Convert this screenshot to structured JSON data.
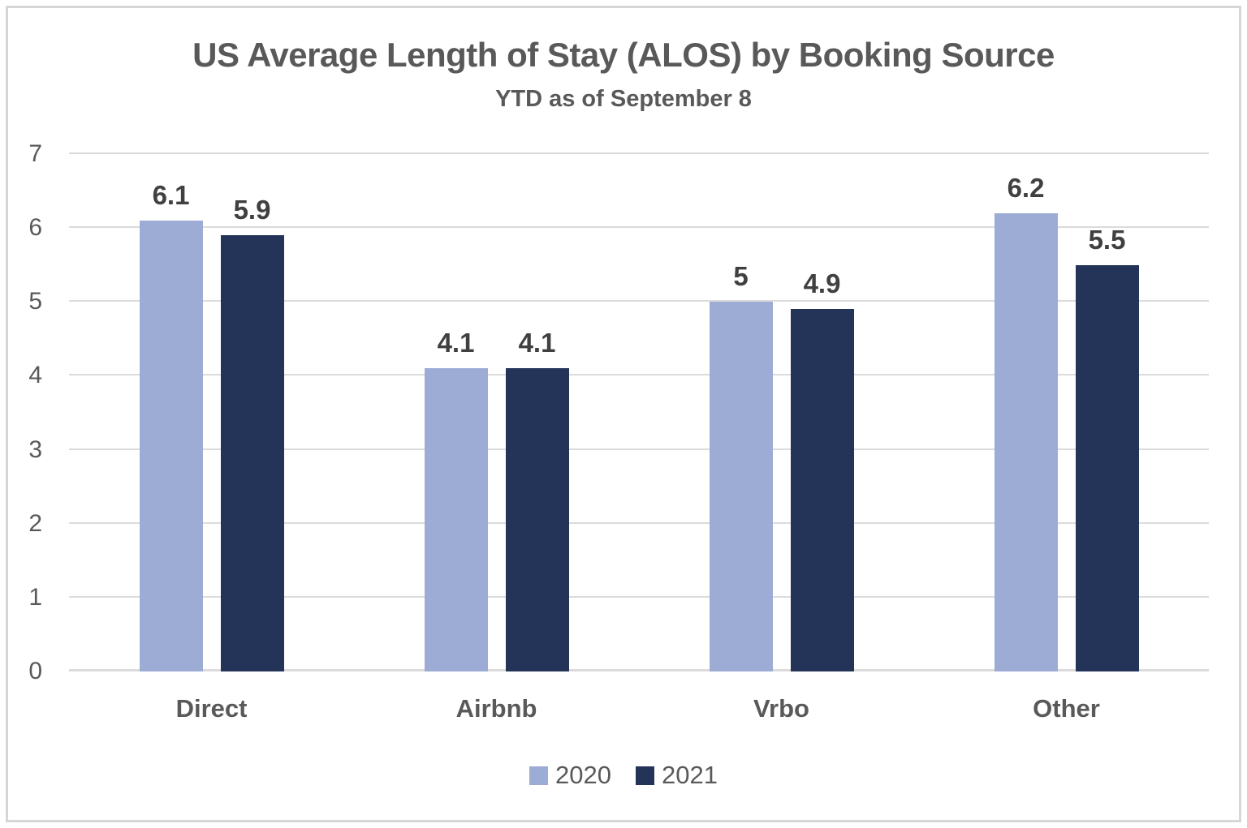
{
  "frame": {
    "border_color": "#d6d6d6",
    "background_color": "#ffffff"
  },
  "chart_data": {
    "type": "bar",
    "title": "US Average Length of Stay (ALOS) by Booking Source",
    "subtitle": "YTD as of September 8",
    "categories": [
      "Direct",
      "Airbnb",
      "Vrbo",
      "Other"
    ],
    "series": [
      {
        "name": "2020",
        "color": "#9cacd5",
        "values": [
          6.1,
          4.1,
          5,
          6.2
        ],
        "labels": [
          "6.1",
          "4.1",
          "5",
          "6.2"
        ]
      },
      {
        "name": "2021",
        "color": "#243459",
        "values": [
          5.9,
          4.1,
          4.9,
          5.5
        ],
        "labels": [
          "5.9",
          "4.1",
          "4.9",
          "5.5"
        ]
      }
    ],
    "ylim": [
      0,
      7
    ],
    "yticks": [
      "0",
      "1",
      "2",
      "3",
      "4",
      "5",
      "6",
      "7"
    ],
    "grid": "horizontal",
    "gridline_color": "#dbdbdb",
    "legend_position": "bottom",
    "title_color": "#595959",
    "axis_tick_color": "#595959",
    "value_label_color": "#404040"
  }
}
